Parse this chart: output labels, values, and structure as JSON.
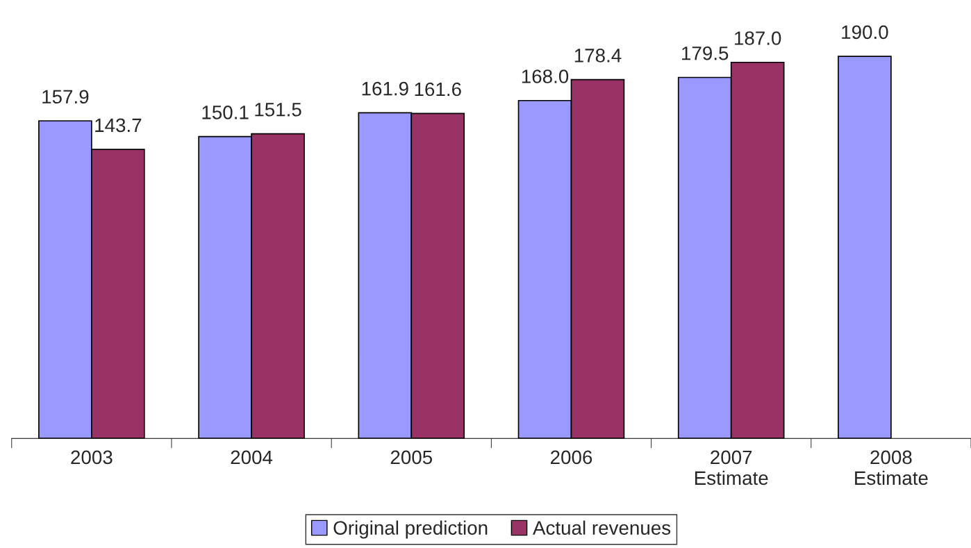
{
  "chart_data": {
    "type": "bar",
    "categories": [
      "2003",
      "2004",
      "2005",
      "2006",
      "2007\nEstimate",
      "2008\nEstimate"
    ],
    "series": [
      {
        "name": "Original prediction",
        "color": "#9999ff",
        "values": [
          157.9,
          150.1,
          161.9,
          168.0,
          179.5,
          190.0
        ],
        "value_labels": [
          "157.9",
          "150.1",
          "161.9",
          "168.0",
          "179.5",
          "190.0"
        ]
      },
      {
        "name": "Actual revenues",
        "color": "#993366",
        "values": [
          143.7,
          151.5,
          161.6,
          178.4,
          187.0,
          null
        ],
        "value_labels": [
          "143.7",
          "151.5",
          "161.6",
          "178.4",
          "187.0",
          null
        ]
      }
    ],
    "grid": false,
    "legend": "bottom"
  }
}
